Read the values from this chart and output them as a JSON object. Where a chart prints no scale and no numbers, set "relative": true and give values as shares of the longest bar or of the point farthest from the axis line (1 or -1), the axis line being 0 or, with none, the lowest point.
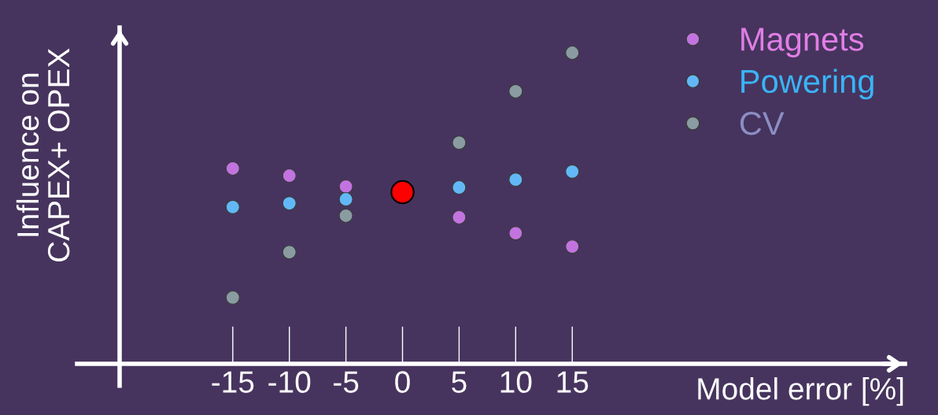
{
  "chart_data": {
    "type": "scatter",
    "relative": true,
    "xlabel": "Model error [%]",
    "ylabel": "Influence on\nCAPEX+ OPEX",
    "xlim": [
      -25,
      44.4
    ],
    "xticks": [
      -15,
      -10,
      -5,
      0,
      5,
      10,
      15
    ],
    "grid": false,
    "legend": "top right",
    "marker": "circle",
    "series": [
      {
        "name": "Magnets",
        "color": "#c273e0",
        "x": [
          -15,
          -10,
          -5,
          5,
          10,
          15
        ],
        "values": [
          0.628,
          0.605,
          0.57,
          0.471,
          0.42,
          0.377
        ]
      },
      {
        "name": "Powering",
        "color": "#62b8f6",
        "x": [
          -15,
          -10,
          -5,
          5,
          10,
          15
        ],
        "values": [
          0.504,
          0.516,
          0.529,
          0.567,
          0.592,
          0.618
        ]
      },
      {
        "name": "CV",
        "color": "#8a9ca2",
        "x": [
          -15,
          -10,
          -5,
          5,
          10,
          15
        ],
        "values": [
          0.213,
          0.359,
          0.476,
          0.711,
          0.876,
          1.0
        ]
      },
      {
        "color": "#ff0000",
        "x": [
          0
        ],
        "values": [
          0.552
        ]
      }
    ]
  }
}
